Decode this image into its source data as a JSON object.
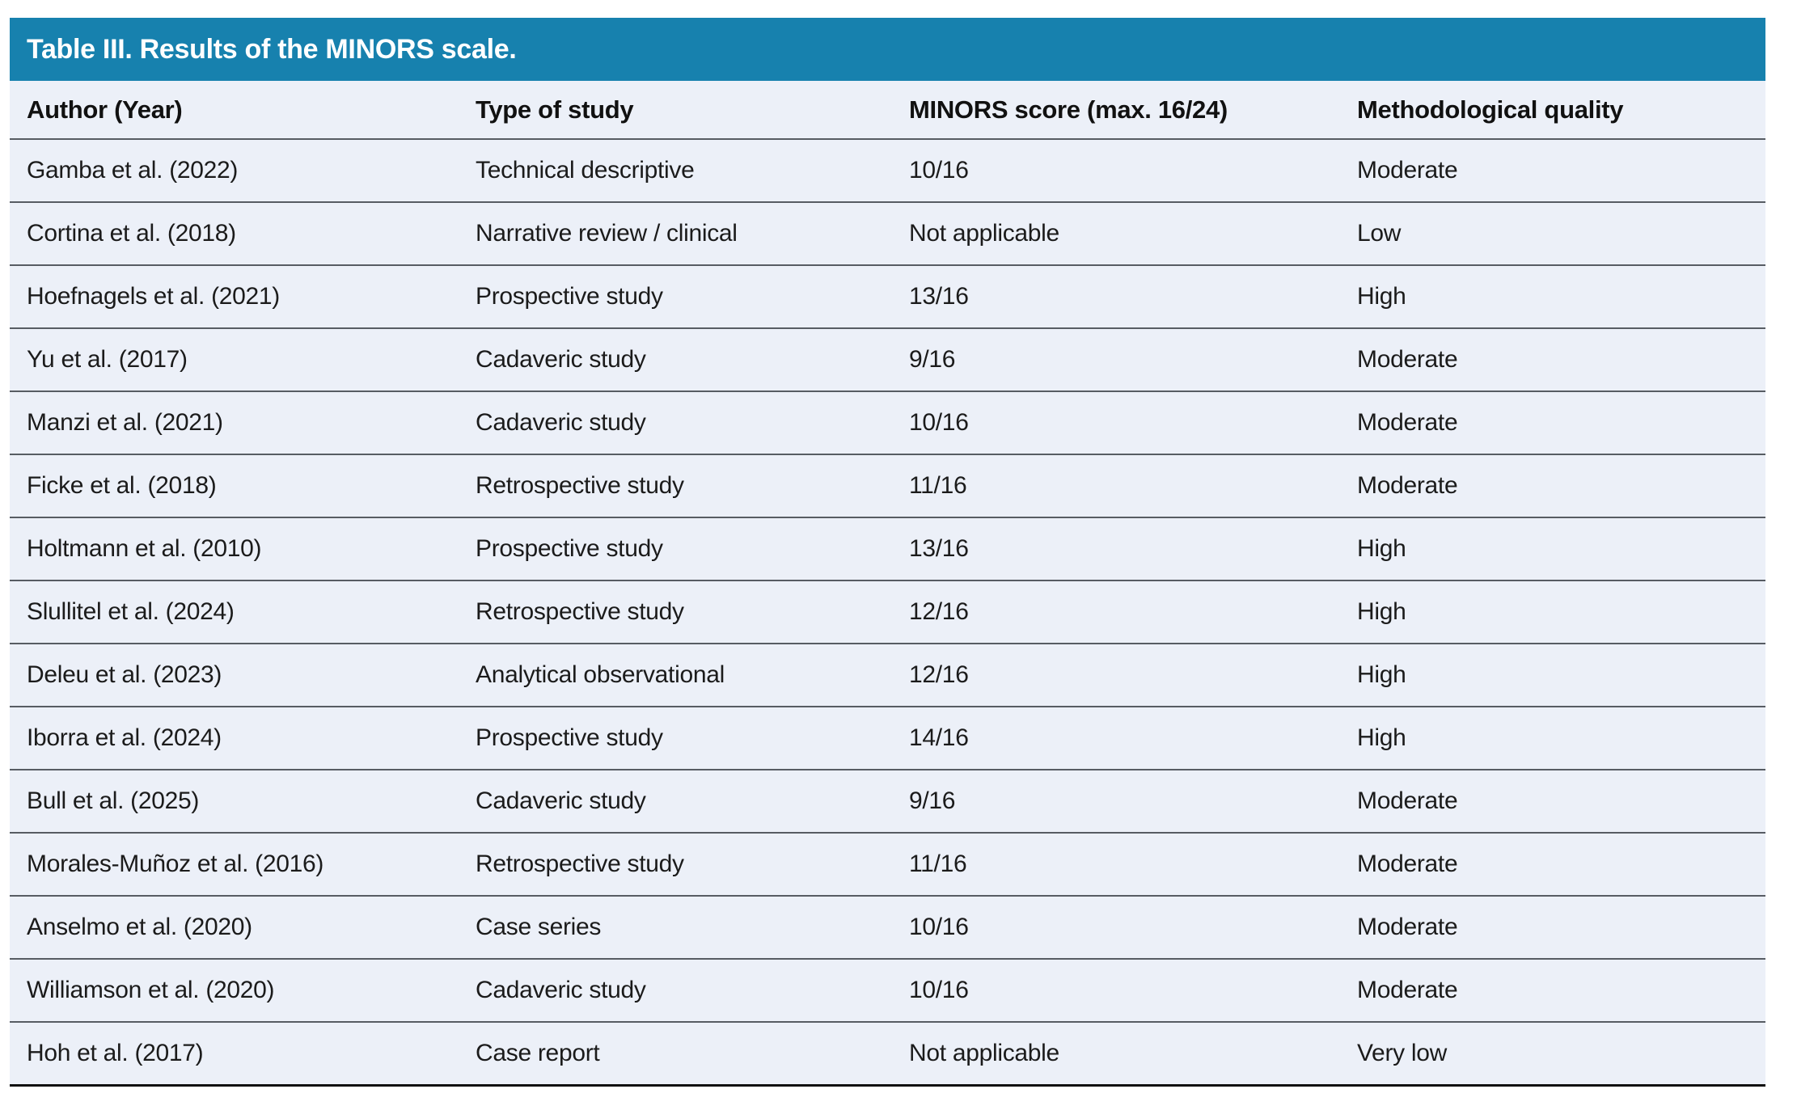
{
  "colors": {
    "title_bar_background": "#1781ae",
    "title_text": "#ffffff",
    "row_background": "#ecf0f8",
    "divider_line": "#575c63",
    "bottom_border": "#111111",
    "body_text": "#1b1b1b"
  },
  "table": {
    "title": "Table III. Results of the MINORS scale.",
    "columns": [
      "Author (Year)",
      "Type of study",
      "MINORS score (max. 16/24)",
      "Methodological quality"
    ],
    "rows": [
      {
        "cells": [
          "Gamba et al. (2022)",
          "Technical descriptive",
          "10/16",
          "Moderate"
        ]
      },
      {
        "cells": [
          "Cortina et al. (2018)",
          "Narrative review / clinical",
          "Not applicable",
          "Low"
        ]
      },
      {
        "cells": [
          "Hoefnagels et al. (2021)",
          "Prospective study",
          "13/16",
          "High"
        ]
      },
      {
        "cells": [
          "Yu et al. (2017)",
          "Cadaveric study",
          "9/16",
          "Moderate"
        ]
      },
      {
        "cells": [
          "Manzi et al. (2021)",
          "Cadaveric study",
          "10/16",
          "Moderate"
        ]
      },
      {
        "cells": [
          "Ficke et al. (2018)",
          "Retrospective study",
          "11/16",
          "Moderate"
        ]
      },
      {
        "cells": [
          "Holtmann et al. (2010)",
          "Prospective study",
          "13/16",
          "High"
        ]
      },
      {
        "cells": [
          "Slullitel et al. (2024)",
          "Retrospective study",
          "12/16",
          "High"
        ]
      },
      {
        "cells": [
          "Deleu et al. (2023)",
          "Analytical observational",
          "12/16",
          "High"
        ]
      },
      {
        "cells": [
          "Iborra et al. (2024)",
          "Prospective study",
          "14/16",
          "High"
        ]
      },
      {
        "cells": [
          "Bull et al. (2025)",
          "Cadaveric study",
          "9/16",
          "Moderate"
        ]
      },
      {
        "cells": [
          "Morales-Muñoz et al. (2016)",
          "Retrospective study",
          "11/16",
          "Moderate"
        ]
      },
      {
        "cells": [
          "Anselmo et al. (2020)",
          "Case series",
          "10/16",
          "Moderate"
        ]
      },
      {
        "cells": [
          "Williamson et al. (2020)",
          "Cadaveric study",
          "10/16",
          "Moderate"
        ]
      },
      {
        "cells": [
          "Hoh et al. (2017)",
          "Case report",
          "Not applicable",
          "Very low"
        ]
      }
    ]
  }
}
